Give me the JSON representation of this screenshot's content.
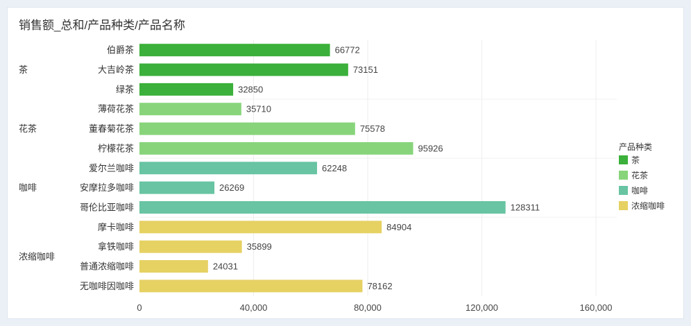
{
  "chart_data": {
    "type": "bar",
    "orientation": "horizontal",
    "title": "销售额_总和/产品种类/产品名称",
    "groups": [
      {
        "name": "茶",
        "color": "#3bb03a",
        "items": [
          {
            "label": "伯爵茶",
            "value": 66772
          },
          {
            "label": "大吉岭茶",
            "value": 73151
          },
          {
            "label": "绿茶",
            "value": 32850
          }
        ]
      },
      {
        "name": "花茶",
        "color": "#88d47b",
        "items": [
          {
            "label": "薄荷花茶",
            "value": 35710
          },
          {
            "label": "董春菊花茶",
            "value": 75578
          },
          {
            "label": "柠檬花茶",
            "value": 95926
          }
        ]
      },
      {
        "name": "咖啡",
        "color": "#68c4a2",
        "items": [
          {
            "label": "爱尔兰咖啡",
            "value": 62248
          },
          {
            "label": "安摩拉多咖啡",
            "value": 26269
          },
          {
            "label": "哥伦比亚咖啡",
            "value": 128311
          }
        ]
      },
      {
        "name": "浓缩咖啡",
        "color": "#e6d163",
        "items": [
          {
            "label": "摩卡咖啡",
            "value": 84904
          },
          {
            "label": "拿铁咖啡",
            "value": 35899
          },
          {
            "label": "普通浓缩咖啡",
            "value": 24031
          },
          {
            "label": "无咖啡因咖啡",
            "value": 78162
          }
        ]
      }
    ],
    "xlim": [
      0,
      160000
    ],
    "xticks": [
      0,
      40000,
      80000,
      120000,
      160000
    ],
    "xtick_labels": [
      "0",
      "40,000",
      "80,000",
      "120,000",
      "160,000"
    ],
    "legend": {
      "title": "产品种类",
      "placement": "right",
      "items": [
        "茶",
        "花茶",
        "咖啡",
        "浓缩咖啡"
      ]
    },
    "grid": true
  }
}
